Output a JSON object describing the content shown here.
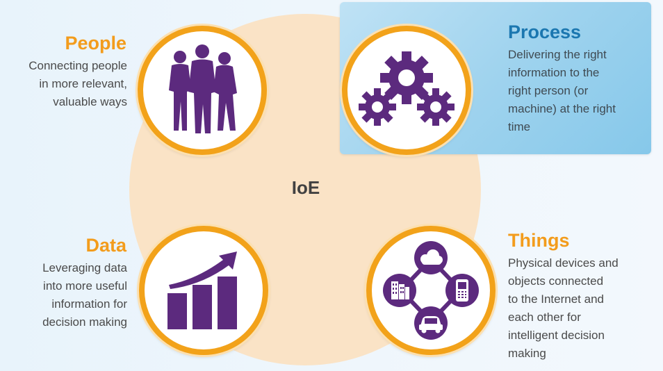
{
  "center": {
    "label": "IoE"
  },
  "colors": {
    "accent_orange": "#f2a21a",
    "icon_purple": "#5c2a7e",
    "process_title_blue": "#1b77b0",
    "panel_blue": "#9fd3ee",
    "disc_peach": "#fae3c6"
  },
  "people": {
    "title": "People",
    "lines": [
      "Connecting people",
      "in more relevant,",
      "valuable ways"
    ],
    "icon": "people-silhouettes-icon"
  },
  "process": {
    "title": "Process",
    "lines": [
      "Delivering the right",
      "information to the",
      "right person (or",
      "machine) at the right",
      "time"
    ],
    "icon": "gears-icon"
  },
  "data": {
    "title": "Data",
    "lines": [
      "Leveraging data",
      "into more useful",
      "information for",
      "decision making"
    ],
    "icon": "bar-chart-trend-icon"
  },
  "things": {
    "title": "Things",
    "lines": [
      "Physical devices and",
      "objects connected",
      "to the Internet and",
      "each other for",
      "intelligent decision",
      "making"
    ],
    "icon": "connected-devices-icon"
  }
}
